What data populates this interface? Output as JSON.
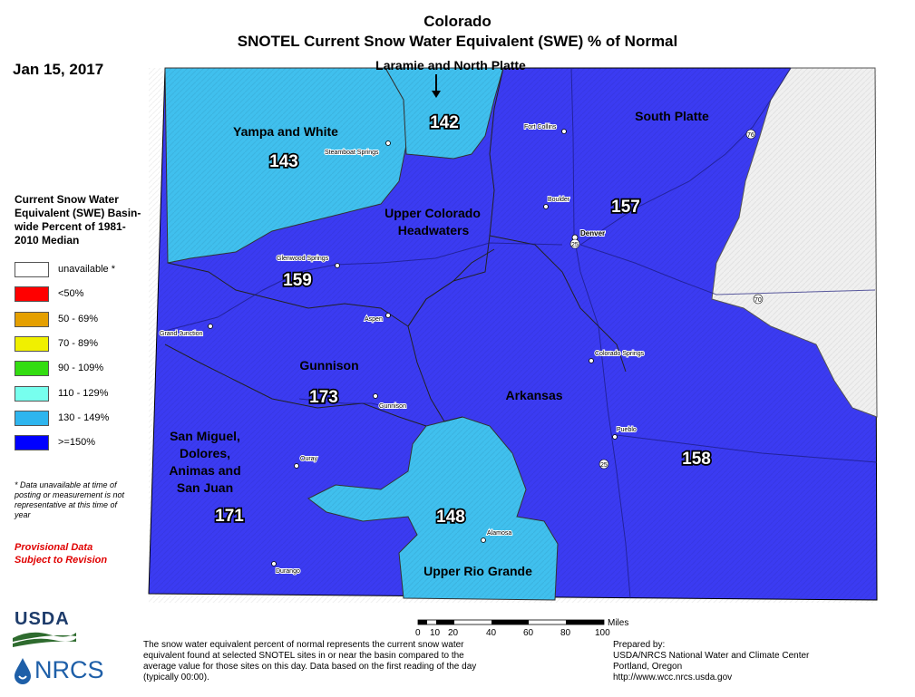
{
  "title": {
    "line1": "Colorado",
    "line2": "SNOTEL Current Snow Water Equivalent (SWE) % of Normal"
  },
  "date": "Jan 15, 2017",
  "legend": {
    "title": "Current Snow Water Equivalent (SWE) Basin-wide Percent of 1981-2010 Median",
    "items": [
      {
        "label": "unavailable *",
        "color": "#ffffff"
      },
      {
        "label": "<50%",
        "color": "#ff0000"
      },
      {
        "label": "50 - 69%",
        "color": "#e5a000"
      },
      {
        "label": "70 - 89%",
        "color": "#f0f000"
      },
      {
        "label": "90 - 109%",
        "color": "#33dd11"
      },
      {
        "label": "110 - 129%",
        "color": "#77ffee"
      },
      {
        "label": "130 - 149%",
        "color": "#2eb5ee"
      },
      {
        "label": ">=150%",
        "color": "#0000ff"
      }
    ]
  },
  "footnote": "* Data unavailable at time of posting or measurement is not representative at this time of year",
  "provisional": {
    "line1": "Provisional Data",
    "line2": "Subject to Revision"
  },
  "basins": {
    "laramie": {
      "name": "Laramie and North Platte",
      "value": "142"
    },
    "yampa": {
      "name": "Yampa and White",
      "value": "143"
    },
    "south_platte": {
      "name": "South Platte",
      "value": "157"
    },
    "upper_colorado": {
      "name_line1": "Upper Colorado",
      "name_line2": "Headwaters",
      "value": "159"
    },
    "gunnison": {
      "name": "Gunnison",
      "value": "173"
    },
    "arkansas": {
      "name": "Arkansas",
      "value": "158"
    },
    "san_miguel": {
      "name_line1": "San Miguel,",
      "name_line2": "Dolores,",
      "name_line3": "Animas and",
      "name_line4": "San Juan",
      "value": "171"
    },
    "rio_grande": {
      "name": "Upper Rio Grande",
      "value": "148"
    }
  },
  "cities": {
    "steamboat": "Steamboat Springs",
    "fort_collins": "Fort Collins",
    "boulder": "Boulder",
    "denver": "Denver",
    "glenwood": "Glenwood Springs",
    "grand_junction": "Grand Junction",
    "aspen": "Aspen",
    "colorado_springs": "Colorado Springs",
    "gunnison_city": "Gunnison",
    "pueblo": "Pueblo",
    "ouray": "Ouray",
    "alamosa": "Alamosa",
    "durango": "Durango"
  },
  "highways": {
    "i76": "76",
    "i70": "70",
    "i25": "25",
    "i25_denver": "25"
  },
  "scale": {
    "ticks": [
      "0",
      "10",
      "20",
      "40",
      "60",
      "80",
      "100"
    ],
    "unit": "Miles"
  },
  "bottom_note": "The snow water equivalent percent of normal represents the current snow water equivalent found at selected SNOTEL sites in or near the basin compared to the average value for those sites on this day. Data based on the first reading of the day (typically 00:00).",
  "prepared": {
    "line1": "Prepared by:",
    "line2": "USDA/NRCS National Water and Climate Center",
    "line3": "Portland, Oregon",
    "line4": "http://www.wcc.nrcs.usda.gov"
  },
  "logos": {
    "usda": "USDA",
    "nrcs": "NRCS"
  },
  "colors": {
    "very_high": "#3b3bf2",
    "high": "#40c0ee",
    "unavailable": "#f0f0f0"
  }
}
